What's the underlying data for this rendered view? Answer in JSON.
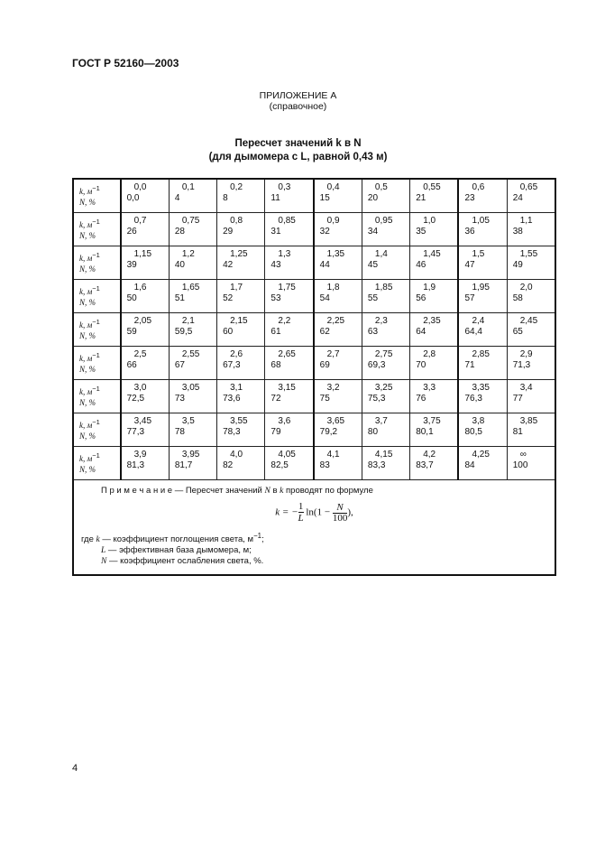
{
  "header": "ГОСТ Р 52160—2003",
  "appendix": {
    "title": "ПРИЛОЖЕНИЕ А",
    "subtitle": "(справочное)"
  },
  "table_title": {
    "line1": "Пересчет значений k в N",
    "line2": "(для дымомера с L, равной 0,43 м)"
  },
  "row_labels": {
    "k": "k, м",
    "k_exp": "−1",
    "n": "N, %"
  },
  "rows": [
    {
      "k": [
        "0,0",
        "0,1",
        "0,2",
        "0,3",
        "0,4",
        "0,5",
        "0,55",
        "0,6",
        "0,65"
      ],
      "n": [
        "0,0",
        "4",
        "8",
        "11",
        "15",
        "20",
        "21",
        "23",
        "24"
      ]
    },
    {
      "k": [
        "0,7",
        "0,75",
        "0,8",
        "0,85",
        "0,9",
        "0,95",
        "1,0",
        "1,05",
        "1,1"
      ],
      "n": [
        "26",
        "28",
        "29",
        "31",
        "32",
        "34",
        "35",
        "36",
        "38"
      ]
    },
    {
      "k": [
        "1,15",
        "1,2",
        "1,25",
        "1,3",
        "1,35",
        "1,4",
        "1,45",
        "1,5",
        "1,55"
      ],
      "n": [
        "39",
        "40",
        "42",
        "43",
        "44",
        "45",
        "46",
        "47",
        "49"
      ]
    },
    {
      "k": [
        "1,6",
        "1,65",
        "1,7",
        "1,75",
        "1,8",
        "1,85",
        "1,9",
        "1,95",
        "2,0"
      ],
      "n": [
        "50",
        "51",
        "52",
        "53",
        "54",
        "55",
        "56",
        "57",
        "58"
      ]
    },
    {
      "k": [
        "2,05",
        "2,1",
        "2,15",
        "2,2",
        "2,25",
        "2,3",
        "2,35",
        "2,4",
        "2,45"
      ],
      "n": [
        "59",
        "59,5",
        "60",
        "61",
        "62",
        "63",
        "64",
        "64,4",
        "65"
      ]
    },
    {
      "k": [
        "2,5",
        "2,55",
        "2,6",
        "2,65",
        "2,7",
        "2,75",
        "2,8",
        "2,85",
        "2,9"
      ],
      "n": [
        "66",
        "67",
        "67,3",
        "68",
        "69",
        "69,3",
        "70",
        "71",
        "71,3"
      ]
    },
    {
      "k": [
        "3,0",
        "3,05",
        "3,1",
        "3,15",
        "3,2",
        "3,25",
        "3,3",
        "3,35",
        "3,4"
      ],
      "n": [
        "72,5",
        "73",
        "73,6",
        "72",
        "75",
        "75,3",
        "76",
        "76,3",
        "77"
      ]
    },
    {
      "k": [
        "3,45",
        "3,5",
        "3,55",
        "3,6",
        "3,65",
        "3,7",
        "3,75",
        "3,8",
        "3,85"
      ],
      "n": [
        "77,3",
        "78",
        "78,3",
        "79",
        "79,2",
        "80",
        "80,1",
        "80,5",
        "81"
      ]
    },
    {
      "k": [
        "3,9",
        "3,95",
        "4,0",
        "4,05",
        "4,1",
        "4,15",
        "4,2",
        "4,25",
        "∞"
      ],
      "n": [
        "81,3",
        "81,7",
        "82",
        "82,5",
        "83",
        "83,3",
        "83,7",
        "84",
        "100"
      ]
    }
  ],
  "note": {
    "label": "П р и м е ч а н и е",
    "text_a": " — Пересчет значений ",
    "var_n": "N",
    "text_b": " в ",
    "var_k": "k",
    "text_c": " проводят по формуле",
    "formula": {
      "lhs": "k = −",
      "num1": "1",
      "den1": "L",
      "mid": " ln(1 − ",
      "num2": "N",
      "den2": "100",
      "end": "),"
    },
    "where": "где ",
    "defs": [
      {
        "sym": "k",
        "text": " — коэффициент поглощения света, м",
        "exp": "−1",
        "tail": ";"
      },
      {
        "sym": "L",
        "text": " — эффективная база дымомера, м;"
      },
      {
        "sym": "N",
        "text": " — коэффициент ослабления света, %."
      }
    ]
  },
  "page_number": "4"
}
